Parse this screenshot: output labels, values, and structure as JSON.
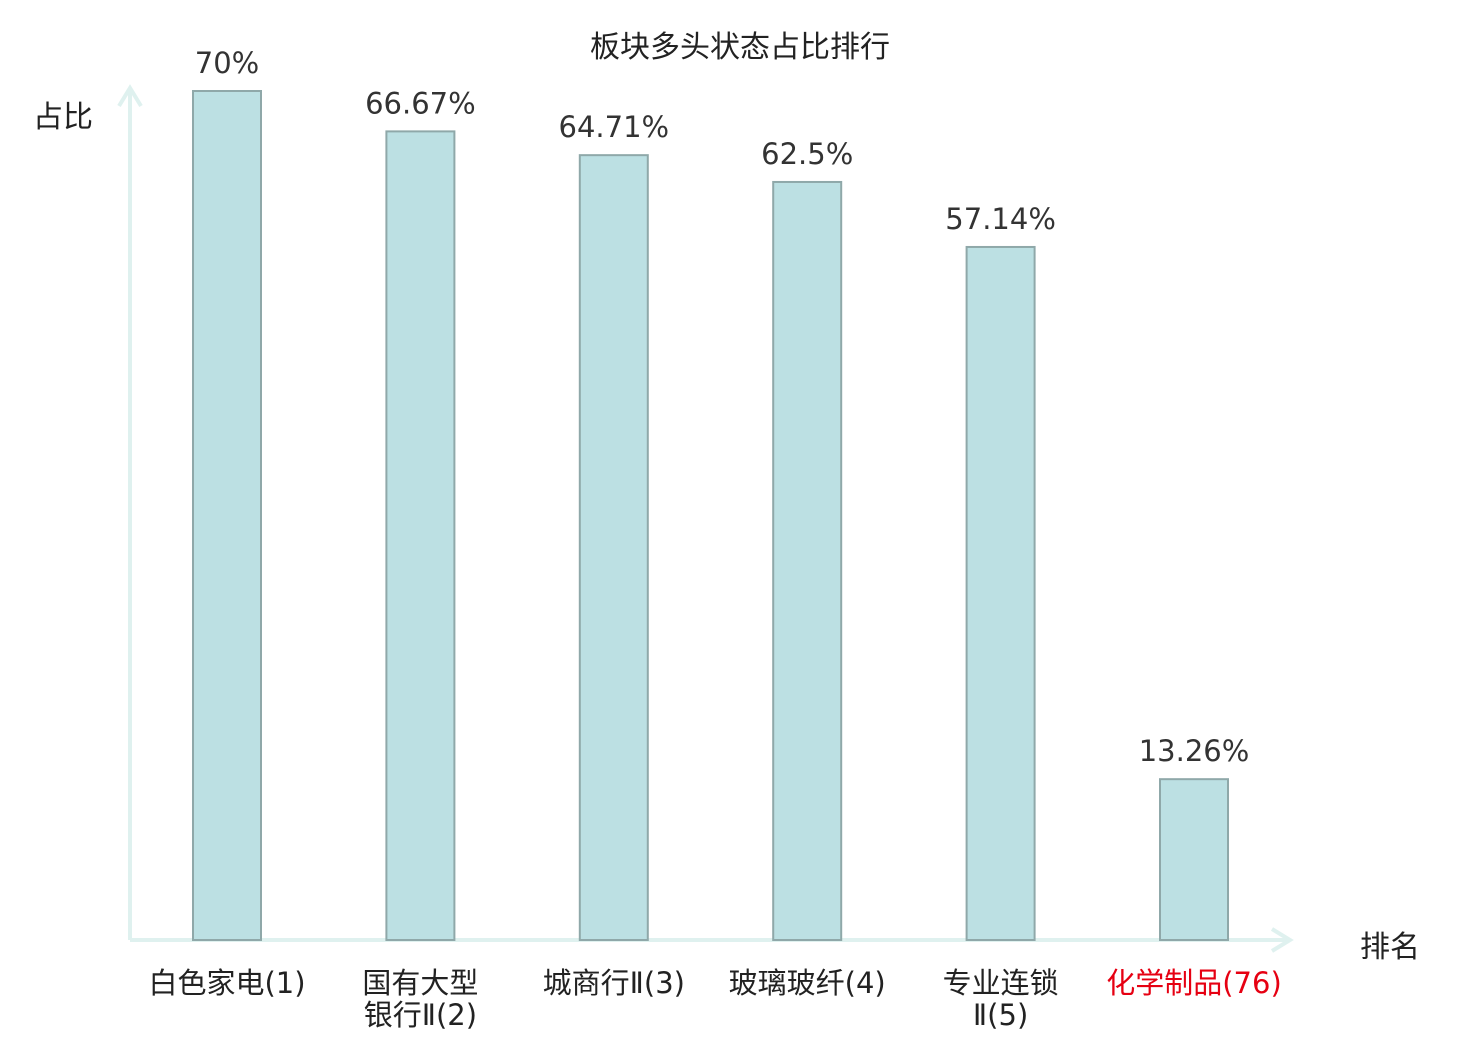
{
  "chart_data": {
    "type": "bar",
    "title": "板块多头状态占比排行",
    "ylabel": "占比",
    "xlabel": "排名",
    "ylim": [
      0,
      70
    ],
    "grid": false,
    "categories": [
      [
        "白色家电(1)"
      ],
      [
        "国有大型",
        "银行Ⅱ(2)"
      ],
      [
        "城商行Ⅱ(3)"
      ],
      [
        "玻璃玻纤(4)"
      ],
      [
        "专业连锁",
        "Ⅱ(5)"
      ],
      [
        "化学制品(76)"
      ]
    ],
    "values": [
      70,
      66.67,
      64.71,
      62.5,
      57.14,
      13.26
    ],
    "value_labels": [
      "70%",
      "66.67%",
      "64.71%",
      "62.5%",
      "57.14%",
      "13.26%"
    ],
    "highlight_index": 5,
    "colors": {
      "bar_fill": "#bce0e3",
      "bar_stroke": "#8fa8a9",
      "axis": "#dff1ef",
      "highlight_text": "#e60012",
      "text": "#222222"
    }
  }
}
